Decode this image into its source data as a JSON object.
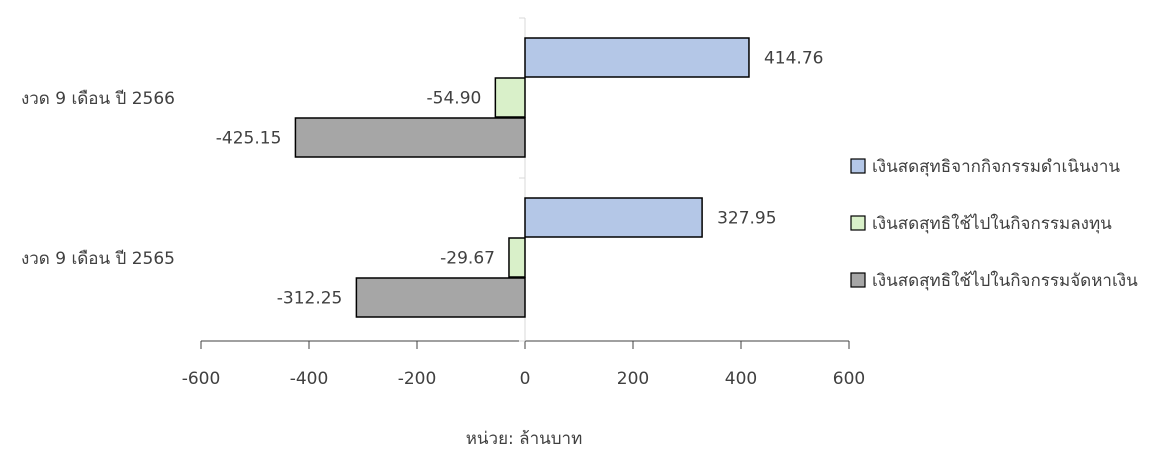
{
  "chart_data": {
    "type": "bar",
    "orientation": "horizontal",
    "categories": [
      "งวด 9 เดือน ปี 2566",
      "งวด 9 เดือน ปี 2565"
    ],
    "series": [
      {
        "name": "เงินสดสุทธิจากกิจกรรมดำเนินงาน",
        "values": [
          414.76,
          327.95
        ],
        "color": "#b4c7e7"
      },
      {
        "name": "เงินสดสุทธิใช้ไปในกิจกรรมลงทุน",
        "values": [
          -54.9,
          -29.67
        ],
        "color": "#d9f0c9"
      },
      {
        "name": "เงินสดสุทธิใช้ไปในกิจกรรมจัดหาเงิน",
        "values": [
          -425.15,
          -312.25
        ],
        "color": "#a6a6a6"
      }
    ],
    "data_labels": [
      [
        "414.76",
        "-54.90",
        "-425.15"
      ],
      [
        "327.95",
        "-29.67",
        "-312.25"
      ]
    ],
    "xlim": [
      -600,
      600
    ],
    "xticks": [
      -600,
      -400,
      -200,
      0,
      200,
      400,
      600
    ],
    "xtick_labels": [
      "-600",
      "-400",
      "-200",
      "0",
      "200",
      "400",
      "600"
    ],
    "unit_label": "หน่วย: ล้านบาท",
    "legend_position": "right",
    "grid": false
  }
}
